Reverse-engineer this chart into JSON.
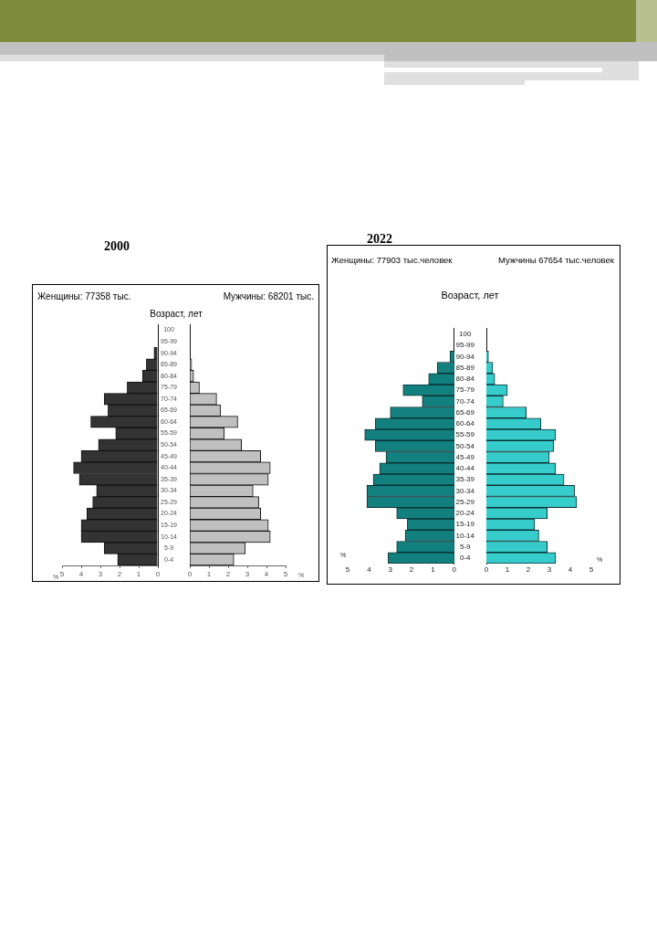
{
  "chart_data": [
    {
      "type": "bar",
      "orientation": "horizontal",
      "title": "2000",
      "subtitle": "Женщины: 77358 тыс.",
      "xlabel": "%",
      "categories": [
        null,
        null,
        null,
        null,
        null,
        null,
        null,
        null,
        null,
        null,
        null,
        null,
        null,
        null,
        null,
        null,
        null,
        null,
        null,
        null,
        null
      ],
      "values": [
        null,
        null,
        0.2,
        0.6,
        0.8,
        1.6,
        2.8,
        2.6,
        3.5,
        2.2,
        3.1,
        4.0,
        4.4,
        4.1,
        3.2,
        3.4,
        3.7,
        4.0,
        4.0,
        2.8,
        2.1
      ],
      "color": "#333333",
      "xlim": [
        5,
        0
      ],
      "xticks": [
        5,
        4,
        3,
        2,
        1,
        0
      ]
    },
    {
      "type": "bar",
      "orientation": "horizontal",
      "subtitle": "Мужчины: 68201 тыс.",
      "ylabel": "Возраст, лет",
      "xlabel": "%",
      "categories": [
        "100",
        "95-99",
        "90-94",
        "85-89",
        "80-84",
        "75-79",
        "70-74",
        "65-69",
        "60-64",
        "55-59",
        "50-54",
        "45-49",
        "40-44",
        "35-39",
        "30-34",
        "25-29",
        "20-24",
        "15-19",
        "10-14",
        "5-9",
        "0-4"
      ],
      "values": [
        null,
        null,
        null,
        0.1,
        0.2,
        0.5,
        1.4,
        1.6,
        2.5,
        1.8,
        2.7,
        3.7,
        4.2,
        4.1,
        3.3,
        3.6,
        3.7,
        4.1,
        4.2,
        2.9,
        2.3
      ],
      "color": "#c0c0c0",
      "xlim": [
        0,
        5
      ],
      "xticks": [
        0,
        1,
        2,
        3,
        4,
        5
      ]
    },
    {
      "type": "bar",
      "orientation": "horizontal",
      "title": "2022",
      "subtitle": "Женщины: 77903 тыс.человек",
      "xlabel": "%",
      "categories": [
        null,
        null,
        null,
        null,
        null,
        null,
        null,
        null,
        null,
        null,
        null,
        null,
        null,
        null,
        null,
        null,
        null,
        null,
        null,
        null,
        null
      ],
      "values": [
        null,
        null,
        0.2,
        0.8,
        1.2,
        2.4,
        1.5,
        3.0,
        3.7,
        4.2,
        3.7,
        3.2,
        3.5,
        3.8,
        4.1,
        4.1,
        2.7,
        2.2,
        2.3,
        2.7,
        3.1
      ],
      "color": "#138080",
      "xlim": [
        5,
        0
      ],
      "xticks": [
        5,
        4,
        3,
        2,
        1,
        0
      ]
    },
    {
      "type": "bar",
      "orientation": "horizontal",
      "subtitle": "Мужчины 67654 тыс.человек",
      "ylabel": "Возраст, лет",
      "xlabel": "%",
      "categories": [
        "100",
        "95-99",
        "90-94",
        "85-89",
        "80-84",
        "75-79",
        "70-74",
        "65-69",
        "60-64",
        "55-59",
        "50-54",
        "45-49",
        "40-44",
        "35-39",
        "30-34",
        "25-29",
        "20-24",
        "15-19",
        "10-14",
        "5-9",
        "0-4"
      ],
      "values": [
        null,
        null,
        0.1,
        0.3,
        0.4,
        1.0,
        0.8,
        1.9,
        2.6,
        3.3,
        3.2,
        3.0,
        3.3,
        3.7,
        4.2,
        4.3,
        2.9,
        2.3,
        2.5,
        2.9,
        3.3
      ],
      "color": "#36cccc",
      "xlim": [
        0,
        5
      ],
      "xticks": [
        0,
        1,
        2,
        3,
        4,
        5
      ]
    }
  ]
}
